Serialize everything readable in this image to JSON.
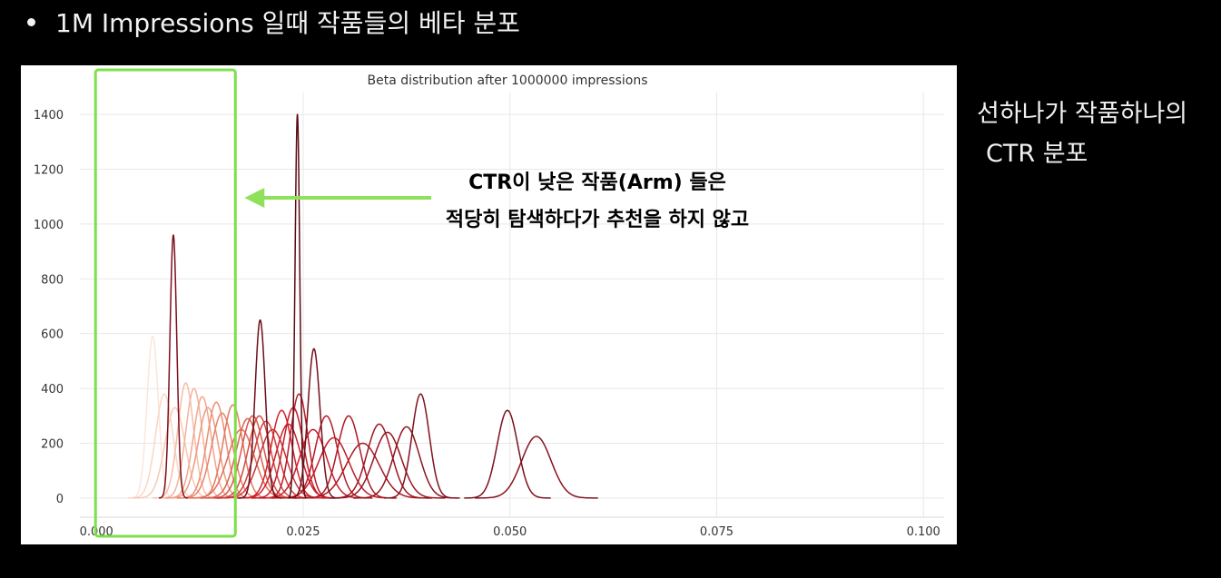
{
  "slide": {
    "heading": "1M Impressions 일때 작품들의 베타 분포",
    "side_note_line1": "선하나가 작품하나의",
    "side_note_line2": "CTR 분포"
  },
  "annotation": {
    "line1": "CTR이 낮은 작품(Arm) 들은",
    "line2": "적당히 탐색하다가 추천을 하지 않고"
  },
  "colors": {
    "background": "#000000",
    "highlight_box": "#7de04a",
    "arrow": "#8fe05a",
    "curve_dark": "#6b0d17",
    "curve_red": "#d2222d",
    "curve_light": "#f4b8a4"
  },
  "chart_data": {
    "type": "line",
    "title": "Beta distribution after 1000000 impressions",
    "xlabel": "",
    "ylabel": "",
    "xlim": [
      -0.002,
      0.1025
    ],
    "ylim": [
      -70,
      1480
    ],
    "x_ticks": [
      0.0,
      0.025,
      0.05,
      0.075,
      0.1
    ],
    "x_tick_labels": [
      "0.000",
      "0.025",
      "0.050",
      "0.075",
      "0.100"
    ],
    "y_ticks": [
      0,
      200,
      400,
      600,
      800,
      1000,
      1200,
      1400
    ],
    "y_tick_labels": [
      "0",
      "200",
      "400",
      "600",
      "800",
      "1000",
      "1200",
      "1400"
    ],
    "grid": true,
    "legend": "none",
    "highlight_x_range": [
      0.0,
      0.0168
    ],
    "series": [
      {
        "peak_x": 0.0068,
        "peak_y": 590,
        "color": "#fbe6dc"
      },
      {
        "peak_x": 0.0082,
        "peak_y": 380,
        "color": "#f9d6c6"
      },
      {
        "peak_x": 0.0095,
        "peak_y": 330,
        "color": "#f7c9b4"
      },
      {
        "peak_x": 0.0108,
        "peak_y": 420,
        "color": "#f6bea8"
      },
      {
        "peak_x": 0.0118,
        "peak_y": 400,
        "color": "#f4b39a"
      },
      {
        "peak_x": 0.0128,
        "peak_y": 370,
        "color": "#f2a68c"
      },
      {
        "peak_x": 0.0135,
        "peak_y": 330,
        "color": "#ef9a80"
      },
      {
        "peak_x": 0.0145,
        "peak_y": 350,
        "color": "#ec8e74"
      },
      {
        "peak_x": 0.0152,
        "peak_y": 310,
        "color": "#e8836a"
      },
      {
        "peak_x": 0.0165,
        "peak_y": 340,
        "color": "#e47962"
      },
      {
        "peak_x": 0.0175,
        "peak_y": 250,
        "color": "#e06e58"
      },
      {
        "peak_x": 0.0183,
        "peak_y": 290,
        "color": "#db624f"
      },
      {
        "peak_x": 0.0189,
        "peak_y": 300,
        "color": "#d65548"
      },
      {
        "peak_x": 0.0197,
        "peak_y": 300,
        "color": "#d24a42"
      },
      {
        "peak_x": 0.0205,
        "peak_y": 280,
        "color": "#cd3f3d"
      },
      {
        "peak_x": 0.0213,
        "peak_y": 250,
        "color": "#c83337"
      },
      {
        "peak_x": 0.0224,
        "peak_y": 320,
        "color": "#d2222d"
      },
      {
        "peak_x": 0.0232,
        "peak_y": 270,
        "color": "#cc1f2a"
      },
      {
        "peak_x": 0.0238,
        "peak_y": 330,
        "color": "#c41c28"
      },
      {
        "peak_x": 0.0245,
        "peak_y": 380,
        "color": "#bc1a26"
      },
      {
        "peak_x": 0.0262,
        "peak_y": 250,
        "color": "#c51d29"
      },
      {
        "peak_x": 0.0278,
        "peak_y": 300,
        "color": "#b81a26"
      },
      {
        "peak_x": 0.0287,
        "peak_y": 220,
        "color": "#c01c28"
      },
      {
        "peak_x": 0.0305,
        "peak_y": 300,
        "color": "#ae1824"
      },
      {
        "peak_x": 0.0322,
        "peak_y": 200,
        "color": "#a81723"
      },
      {
        "peak_x": 0.0342,
        "peak_y": 270,
        "color": "#9e1622"
      },
      {
        "peak_x": 0.0352,
        "peak_y": 240,
        "color": "#961521"
      },
      {
        "peak_x": 0.0375,
        "peak_y": 260,
        "color": "#8c1420"
      },
      {
        "peak_x": 0.0392,
        "peak_y": 380,
        "color": "#80121e"
      },
      {
        "peak_x": 0.0497,
        "peak_y": 320,
        "color": "#7a101c"
      },
      {
        "peak_x": 0.0532,
        "peak_y": 225,
        "color": "#86121e"
      },
      {
        "peak_x": 0.0093,
        "peak_y": 960,
        "color": "#7d0f1c"
      },
      {
        "peak_x": 0.0198,
        "peak_y": 650,
        "color": "#6e0d18"
      },
      {
        "peak_x": 0.0263,
        "peak_y": 545,
        "color": "#74101a"
      },
      {
        "peak_x": 0.0243,
        "peak_y": 1400,
        "color": "#5a0a14"
      }
    ]
  }
}
